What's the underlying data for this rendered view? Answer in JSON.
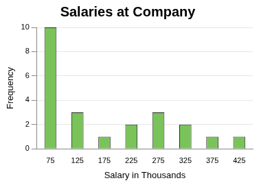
{
  "chart_data": {
    "type": "bar",
    "title": "Salaries at Company",
    "x_label": "Salary in Thousands",
    "y_label": "Frequency",
    "categories": [
      "75",
      "125",
      "175",
      "225",
      "275",
      "325",
      "375",
      "425"
    ],
    "values": [
      10,
      3,
      1,
      2,
      3,
      2,
      1,
      1
    ],
    "color": "#7ac35a",
    "ylim": [
      0,
      10
    ],
    "yticks": [
      0,
      2,
      4,
      6,
      8,
      10
    ],
    "grid": true
  }
}
